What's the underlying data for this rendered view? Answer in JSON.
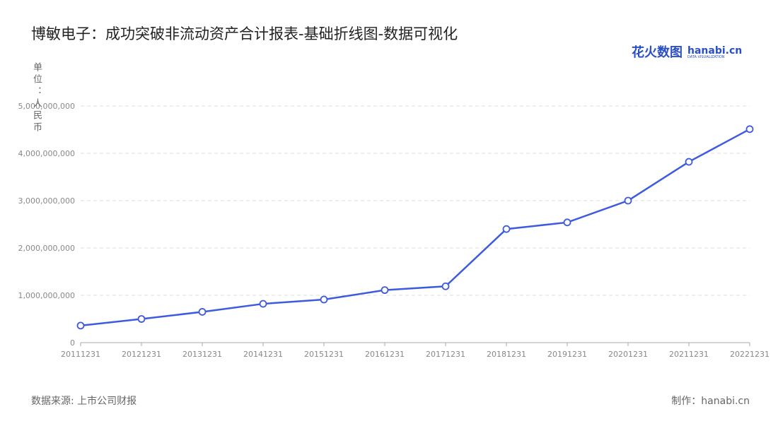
{
  "chart_data": {
    "type": "line",
    "title": "博敏电子：成功突破非流动资产合计报表-基础折线图-数据可视化",
    "y_label": "单位：人民币",
    "source": "数据来源: 上市公司财报",
    "credit": "制作：hanabi.cn",
    "categories": [
      "20111231",
      "20121231",
      "20131231",
      "20141231",
      "20151231",
      "20161231",
      "20171231",
      "20181231",
      "20191231",
      "20201231",
      "20211231",
      "20221231"
    ],
    "series": [
      {
        "name": "非流动资产合计",
        "color": "#3d5ae0",
        "values": [
          360000000,
          500000000,
          650000000,
          820000000,
          910000000,
          1110000000,
          1190000000,
          2400000000,
          2540000000,
          3000000000,
          3820000000,
          4510000000
        ]
      }
    ],
    "ylim": [
      0,
      5000000000
    ],
    "yticks": [
      0,
      {
        "value": 1000000000,
        "label": "1,000,000,000"
      },
      {
        "value": 2000000000,
        "label": "2,000,000,000"
      },
      {
        "value": 3000000000,
        "label": "3,000,000,000"
      },
      {
        "value": 4000000000,
        "label": "4,000,000,000"
      },
      {
        "value": 5000000000,
        "label": "5,000,000,000"
      }
    ],
    "grid": true
  },
  "logo": {
    "cn": "花火数图",
    "en": "hanabi.cn",
    "sub": "DATA VISUALIZATION"
  }
}
